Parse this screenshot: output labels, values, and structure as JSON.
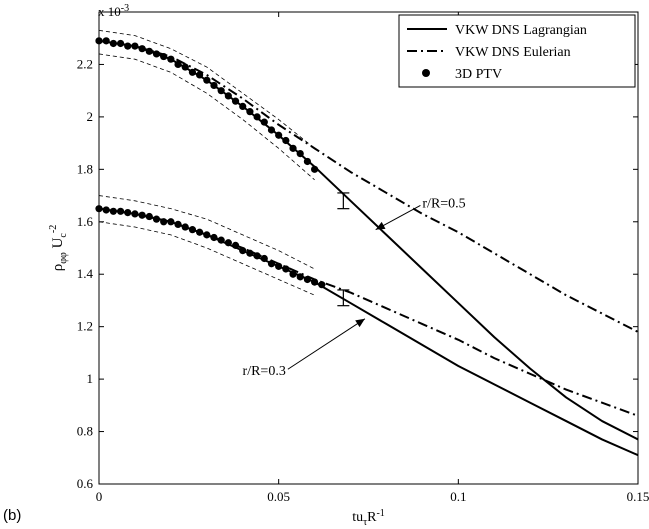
{
  "panel_label": "(b)",
  "chart_data": {
    "type": "line",
    "xlabel": "tu_τR^-1",
    "ylabel": "ρ_φφ U_c^-2",
    "xlim": [
      0,
      0.15
    ],
    "ylim": [
      0.6,
      2.4
    ],
    "y_multiplier": "x 10^-3",
    "x_ticks": [
      "0",
      "0.05",
      "0.1",
      "0.15"
    ],
    "y_ticks": [
      "0.6",
      "0.8",
      "1",
      "1.2",
      "1.4",
      "1.6",
      "1.8",
      "2",
      "2.2"
    ],
    "grid": false,
    "legend_position": "top-right",
    "legend": [
      {
        "label": "VKW DNS Lagrangian",
        "style": "solid"
      },
      {
        "label": "VKW DNS Eulerian",
        "style": "dashdot"
      },
      {
        "label": "3D PTV",
        "style": "dots"
      }
    ],
    "series": [
      {
        "name": "VKW DNS Lagrangian",
        "group": "r/R=0.5",
        "style": "solid",
        "x": [
          0,
          0.01,
          0.02,
          0.03,
          0.04,
          0.05,
          0.06,
          0.07,
          0.08,
          0.09,
          0.1,
          0.11,
          0.12,
          0.13,
          0.14,
          0.15
        ],
        "y": [
          2.29,
          2.27,
          2.22,
          2.14,
          2.04,
          1.93,
          1.81,
          1.68,
          1.55,
          1.42,
          1.29,
          1.16,
          1.04,
          0.93,
          0.84,
          0.77
        ]
      },
      {
        "name": "VKW DNS Eulerian",
        "group": "r/R=0.5",
        "style": "dashdot",
        "x": [
          0,
          0.01,
          0.02,
          0.03,
          0.04,
          0.05,
          0.06,
          0.07,
          0.08,
          0.09,
          0.1,
          0.11,
          0.12,
          0.13,
          0.14,
          0.15
        ],
        "y": [
          2.29,
          2.27,
          2.23,
          2.16,
          2.07,
          1.97,
          1.88,
          1.79,
          1.71,
          1.63,
          1.56,
          1.48,
          1.4,
          1.32,
          1.25,
          1.18
        ]
      },
      {
        "name": "VKW DNS Lagrangian",
        "group": "r/R=0.3",
        "style": "solid",
        "x": [
          0,
          0.01,
          0.02,
          0.03,
          0.04,
          0.05,
          0.06,
          0.07,
          0.08,
          0.09,
          0.1,
          0.11,
          0.12,
          0.13,
          0.14,
          0.15
        ],
        "y": [
          1.65,
          1.63,
          1.6,
          1.55,
          1.49,
          1.43,
          1.37,
          1.29,
          1.21,
          1.13,
          1.05,
          0.98,
          0.91,
          0.84,
          0.77,
          0.71
        ]
      },
      {
        "name": "VKW DNS Eulerian",
        "group": "r/R=0.3",
        "style": "dashdot",
        "x": [
          0,
          0.01,
          0.02,
          0.03,
          0.04,
          0.05,
          0.06,
          0.07,
          0.08,
          0.09,
          0.1,
          0.11,
          0.12,
          0.13,
          0.14,
          0.15
        ],
        "y": [
          1.65,
          1.63,
          1.6,
          1.55,
          1.5,
          1.44,
          1.38,
          1.33,
          1.27,
          1.21,
          1.15,
          1.08,
          1.02,
          0.96,
          0.91,
          0.86
        ]
      },
      {
        "name": "3D PTV",
        "group": "r/R=0.5",
        "style": "dots",
        "x": [
          0,
          0.002,
          0.004,
          0.006,
          0.008,
          0.01,
          0.012,
          0.014,
          0.016,
          0.018,
          0.02,
          0.022,
          0.024,
          0.026,
          0.028,
          0.03,
          0.032,
          0.034,
          0.036,
          0.038,
          0.04,
          0.042,
          0.044,
          0.046,
          0.048,
          0.05,
          0.052,
          0.054,
          0.056,
          0.058,
          0.06
        ],
        "y": [
          2.29,
          2.29,
          2.28,
          2.28,
          2.27,
          2.27,
          2.26,
          2.25,
          2.24,
          2.23,
          2.22,
          2.2,
          2.19,
          2.17,
          2.16,
          2.14,
          2.12,
          2.1,
          2.08,
          2.06,
          2.04,
          2.02,
          2.0,
          1.98,
          1.95,
          1.93,
          1.91,
          1.88,
          1.86,
          1.83,
          1.8
        ]
      },
      {
        "name": "3D PTV",
        "group": "r/R=0.3",
        "style": "dots",
        "x": [
          0,
          0.002,
          0.004,
          0.006,
          0.008,
          0.01,
          0.012,
          0.014,
          0.016,
          0.018,
          0.02,
          0.022,
          0.024,
          0.026,
          0.028,
          0.03,
          0.032,
          0.034,
          0.036,
          0.038,
          0.04,
          0.042,
          0.044,
          0.046,
          0.048,
          0.05,
          0.052,
          0.054,
          0.056,
          0.058,
          0.06,
          0.062
        ],
        "y": [
          1.65,
          1.645,
          1.64,
          1.64,
          1.635,
          1.63,
          1.625,
          1.62,
          1.61,
          1.6,
          1.6,
          1.59,
          1.58,
          1.57,
          1.56,
          1.55,
          1.54,
          1.53,
          1.52,
          1.51,
          1.49,
          1.48,
          1.47,
          1.46,
          1.44,
          1.43,
          1.42,
          1.4,
          1.39,
          1.38,
          1.37,
          1.36
        ]
      }
    ],
    "uncertainty_bands": [
      {
        "group": "r/R=0.5",
        "x": [
          0,
          0.01,
          0.02,
          0.03,
          0.04,
          0.05,
          0.06
        ],
        "upper": [
          2.33,
          2.31,
          2.26,
          2.19,
          2.09,
          1.99,
          1.88
        ],
        "lower": [
          2.24,
          2.22,
          2.17,
          2.09,
          1.99,
          1.88,
          1.76
        ]
      },
      {
        "group": "r/R=0.3",
        "x": [
          0,
          0.01,
          0.02,
          0.03,
          0.04,
          0.05,
          0.06
        ],
        "upper": [
          1.7,
          1.68,
          1.65,
          1.61,
          1.55,
          1.49,
          1.42
        ],
        "lower": [
          1.6,
          1.58,
          1.55,
          1.5,
          1.44,
          1.38,
          1.32
        ]
      }
    ],
    "error_bars": [
      {
        "x": 0.068,
        "y": 1.68,
        "low": 1.65,
        "high": 1.71
      },
      {
        "x": 0.068,
        "y": 1.31,
        "low": 1.28,
        "high": 1.34
      }
    ],
    "annotations": [
      {
        "text": "r/R=0.5",
        "text_x": 0.09,
        "text_y": 1.67,
        "arrow_to_x": 0.077,
        "arrow_to_y": 1.57
      },
      {
        "text": "r/R=0.3",
        "text_x": 0.052,
        "text_y": 1.03,
        "arrow_to_x": 0.074,
        "arrow_to_y": 1.23
      }
    ]
  }
}
